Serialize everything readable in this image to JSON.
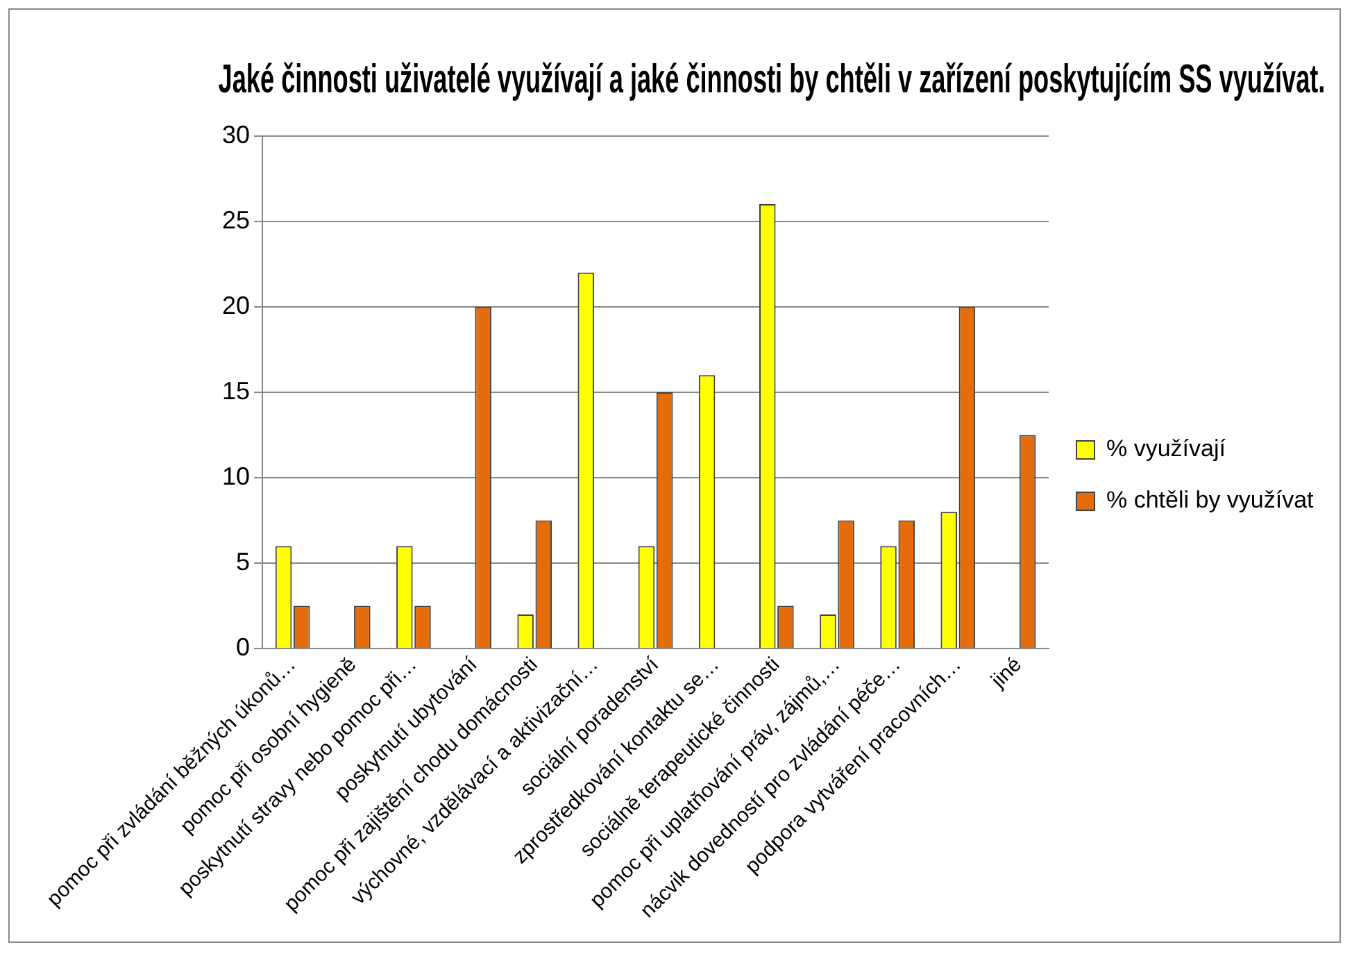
{
  "chart_data": {
    "type": "bar",
    "title": "Jaké činnosti uživatelé využívají a jaké činnosti by chtěli v zařízení poskytujícím SS využívat.",
    "categories": [
      "pomoc při zvládání běžných úkonů…",
      "pomoc při osobní hygieně",
      "poskytnutí stravy nebo pomoc při…",
      "poskytnutí ubytování",
      "pomoc při zajištění chodu domácnosti",
      "výchovné, vzdělávací a aktivizační…",
      "sociální poradenství",
      "zprostředkování kontaktu se…",
      "sociálně terapeutické činnosti",
      "pomoc při uplatňování práv, zájmů,…",
      "nácvik dovedností pro zvládání péče…",
      "podpora vytváření pracovních…",
      "jiné"
    ],
    "series": [
      {
        "name": "% využívají",
        "color": "#ffff00",
        "values": [
          6,
          0,
          6,
          0,
          2,
          22,
          6,
          16,
          26,
          2,
          6,
          8,
          0
        ]
      },
      {
        "name": "% chtěli by využívat",
        "color": "#e46c0a",
        "values": [
          2.5,
          2.5,
          2.5,
          20,
          7.5,
          0,
          15,
          0,
          2.5,
          7.5,
          7.5,
          20,
          12.5
        ]
      }
    ],
    "ylim": [
      0,
      30
    ],
    "yticks": [
      0,
      5,
      10,
      15,
      20,
      25,
      30
    ],
    "grid": "y",
    "legend": "right"
  }
}
